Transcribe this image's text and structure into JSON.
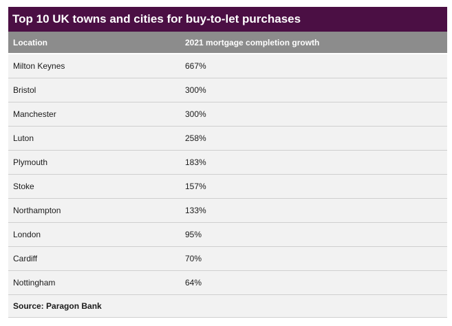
{
  "title": "Top 10 UK towns and cities for buy-to-let purchases",
  "columns": {
    "location": "Location",
    "growth": "2021 mortgage completion growth"
  },
  "rows": [
    {
      "location": "Milton Keynes",
      "growth": "667%"
    },
    {
      "location": "Bristol",
      "growth": "300%"
    },
    {
      "location": "Manchester",
      "growth": "300%"
    },
    {
      "location": "Luton",
      "growth": "258%"
    },
    {
      "location": "Plymouth",
      "growth": "183%"
    },
    {
      "location": "Stoke",
      "growth": "157%"
    },
    {
      "location": "Northampton",
      "growth": "133%"
    },
    {
      "location": "London",
      "growth": "95%"
    },
    {
      "location": "Cardiff",
      "growth": "70%"
    },
    {
      "location": "Nottingham",
      "growth": "64%"
    }
  ],
  "source": "Source: Paragon Bank",
  "colors": {
    "title_background": "#4b0f44",
    "header_background": "#8c8c8c",
    "row_background": "#f2f2f2"
  }
}
